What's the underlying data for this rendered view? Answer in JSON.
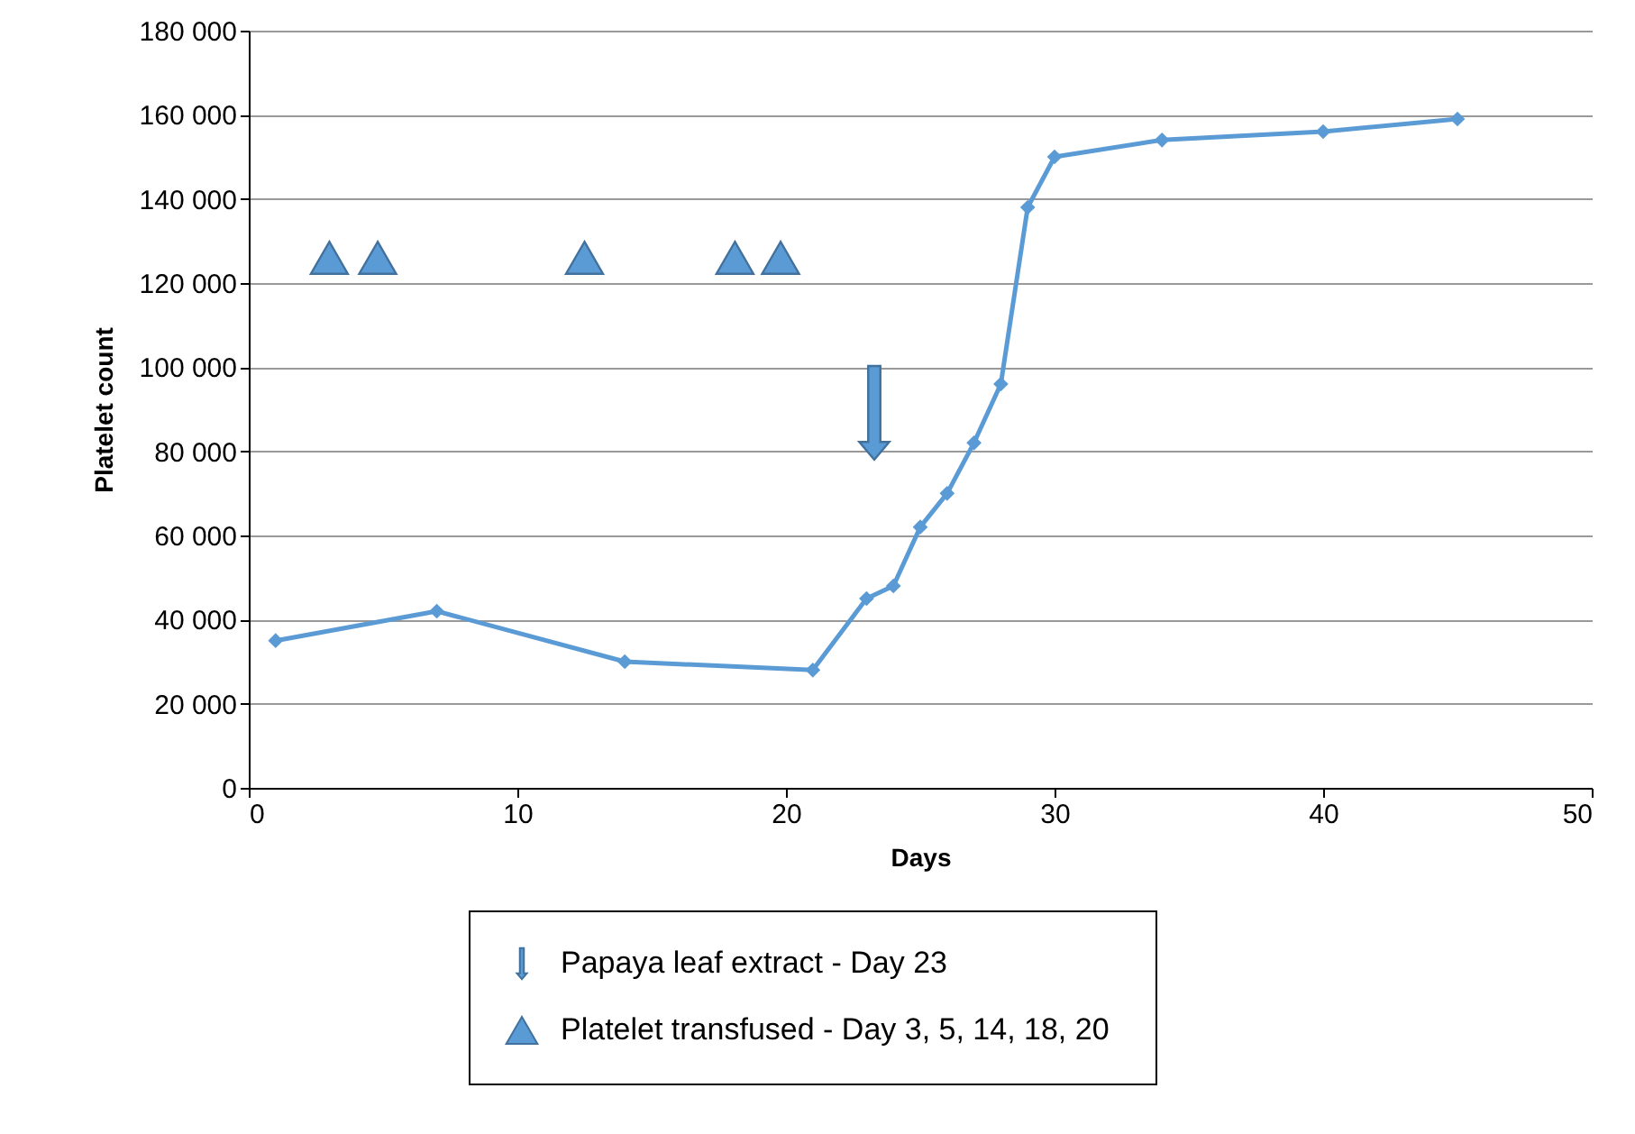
{
  "chart_data": {
    "type": "line",
    "xlabel": "Days",
    "ylabel": "Platelet  count",
    "xlim": [
      0,
      50
    ],
    "xticks": [
      0,
      10,
      20,
      30,
      40,
      50
    ],
    "ylim": [
      0,
      180000
    ],
    "yticks": [
      {
        "value": 0,
        "label": "0"
      },
      {
        "value": 20000,
        "label": "20 000"
      },
      {
        "value": 40000,
        "label": "40 000"
      },
      {
        "value": 60000,
        "label": "60 000"
      },
      {
        "value": 80000,
        "label": "80 000"
      },
      {
        "value": 100000,
        "label": "100 000"
      },
      {
        "value": 120000,
        "label": "120 000"
      },
      {
        "value": 140000,
        "label": "140 000"
      },
      {
        "value": 160000,
        "label": "160 000"
      },
      {
        "value": 180000,
        "label": "180 000"
      }
    ],
    "annotations": [
      "Papaya leaf extract - Day 23"
    ],
    "grid": "y",
    "legend": "bottom",
    "marker": "diamond",
    "line_style": "solid",
    "series": [
      {
        "color": "#5b9bd5",
        "x": [
          1,
          7,
          14,
          21,
          23,
          24,
          25,
          26,
          27,
          28,
          29,
          30,
          34,
          40,
          45
        ],
        "values": [
          35000,
          42000,
          30000,
          28000,
          45000,
          48000,
          62000,
          70000,
          82000,
          96000,
          138000,
          150000,
          154000,
          156000,
          159000
        ]
      },
      {
        "type": "scatter",
        "name": "Platelet transfused  - Day 3, 5, 14, 18, 20",
        "color": "#5b9bd5",
        "marker": "triangle",
        "x": [
          3,
          4.8,
          12.5,
          18.1,
          19.8
        ],
        "values": [
          126000,
          126000,
          126000,
          126000,
          126000
        ]
      }
    ]
  }
}
